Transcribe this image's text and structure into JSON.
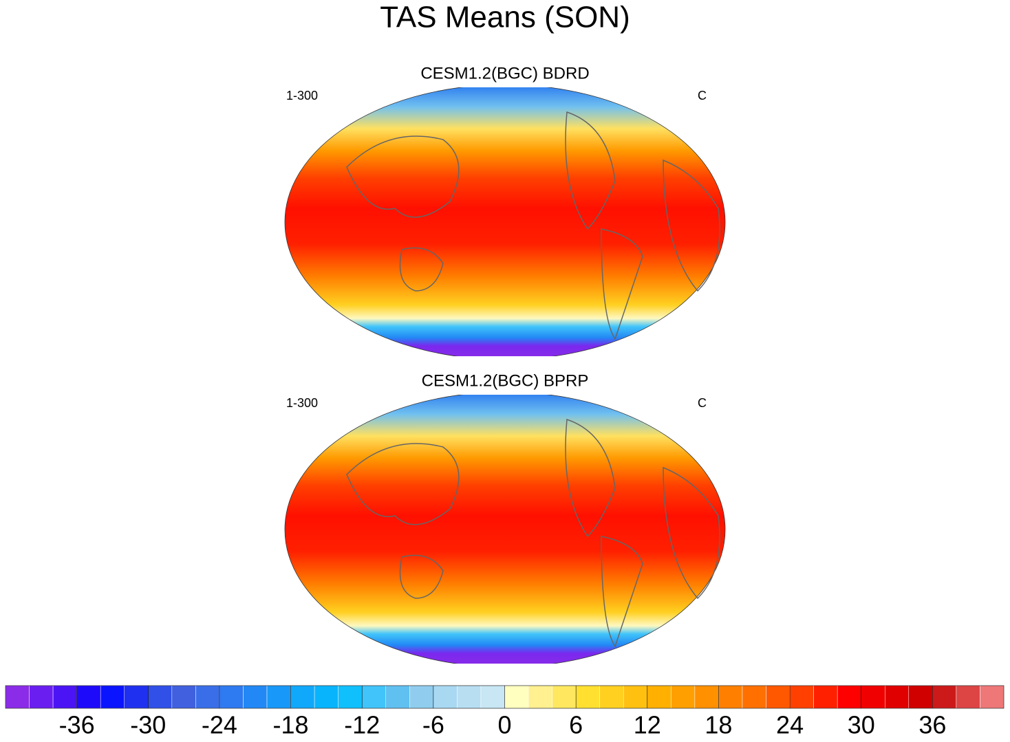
{
  "title": "TAS Means (SON)",
  "panels": [
    {
      "title": "CESM1.2(BGC) BDRD",
      "left_label": "1-300",
      "right_label": "C"
    },
    {
      "title": "CESM1.2(BGC) BPRP",
      "left_label": "1-300",
      "right_label": "C"
    }
  ],
  "colorbar": {
    "xlim": [
      -42,
      42
    ],
    "ticks": [
      -36,
      -30,
      -24,
      -18,
      -12,
      -6,
      0,
      6,
      12,
      18,
      24,
      30,
      36
    ],
    "colors": [
      "#8b2ce8",
      "#6a1ff0",
      "#4a14f5",
      "#1e0afa",
      "#0a14ff",
      "#2030f0",
      "#3050e8",
      "#4060e0",
      "#3a6ee8",
      "#2e7af0",
      "#2288f5",
      "#1898f8",
      "#10a8fa",
      "#08b4fc",
      "#10c0fc",
      "#40c4fa",
      "#60c0f0",
      "#90ccee",
      "#a8d8f2",
      "#b8def2",
      "#c8e6f4",
      "#ffffc0",
      "#fff090",
      "#ffe860",
      "#ffe030",
      "#ffd020",
      "#ffc010",
      "#ffb000",
      "#ffa000",
      "#ff9000",
      "#ff8000",
      "#ff7000",
      "#ff5800",
      "#ff4000",
      "#ff2000",
      "#ff0000",
      "#f00000",
      "#e00000",
      "#d00000",
      "#cc1a1a",
      "#dd4444",
      "#ee7777"
    ]
  }
}
